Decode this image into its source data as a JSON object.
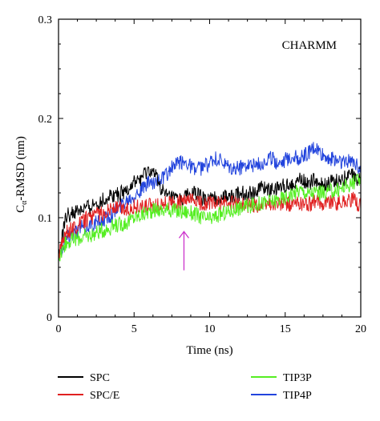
{
  "chart_data": {
    "type": "line",
    "title": "",
    "annotation_text": "CHARMM",
    "xlabel": "Time (ns)",
    "ylabel_parts": {
      "prefix": "C",
      "subscript": "α",
      "suffix": "-RMSD (nm)"
    },
    "xlim": [
      0,
      20
    ],
    "ylim": [
      0,
      0.3
    ],
    "xticks": [
      0,
      5,
      10,
      15,
      20
    ],
    "xtick_labels": [
      "0",
      "5",
      "10",
      "15",
      "20"
    ],
    "yticks": [
      0,
      0.1,
      0.2,
      0.3
    ],
    "ytick_labels": [
      "0",
      "0.1",
      "0.2",
      "0.3"
    ],
    "grid": false,
    "legend_position": "bottom",
    "arrow_annotation": {
      "x": 8.3,
      "y_from": 0.047,
      "y_to": 0.086,
      "color": "#cc33cc"
    },
    "series": [
      {
        "name": "SPC",
        "color": "#000000",
        "x": [
          0,
          0.5,
          1,
          1.5,
          2,
          2.5,
          3,
          3.5,
          4,
          4.5,
          5,
          5.5,
          6,
          6.5,
          7,
          7.5,
          8,
          8.5,
          9,
          9.5,
          10,
          10.5,
          11,
          11.5,
          12,
          12.5,
          13,
          13.5,
          14,
          14.5,
          15,
          15.5,
          16,
          16.5,
          17,
          17.5,
          18,
          18.5,
          19,
          19.5,
          20
        ],
        "y": [
          0.058,
          0.102,
          0.105,
          0.108,
          0.11,
          0.115,
          0.118,
          0.123,
          0.123,
          0.128,
          0.135,
          0.14,
          0.148,
          0.14,
          0.123,
          0.12,
          0.118,
          0.122,
          0.125,
          0.12,
          0.118,
          0.12,
          0.122,
          0.121,
          0.125,
          0.124,
          0.126,
          0.13,
          0.128,
          0.13,
          0.132,
          0.135,
          0.138,
          0.135,
          0.138,
          0.132,
          0.135,
          0.138,
          0.14,
          0.142,
          0.138
        ]
      },
      {
        "name": "SPC/E",
        "color": "#e02020",
        "x": [
          0,
          0.5,
          1,
          1.5,
          2,
          2.5,
          3,
          3.5,
          4,
          4.5,
          5,
          5.5,
          6,
          6.5,
          7,
          7.5,
          8,
          8.5,
          9,
          9.5,
          10,
          10.5,
          11,
          11.5,
          12,
          12.5,
          13,
          13.5,
          14,
          14.5,
          15,
          15.5,
          16,
          16.5,
          17,
          17.5,
          18,
          18.5,
          19,
          19.5,
          20
        ],
        "y": [
          0.062,
          0.085,
          0.09,
          0.095,
          0.1,
          0.102,
          0.105,
          0.11,
          0.11,
          0.108,
          0.112,
          0.11,
          0.112,
          0.112,
          0.115,
          0.114,
          0.115,
          0.116,
          0.117,
          0.114,
          0.115,
          0.114,
          0.115,
          0.114,
          0.114,
          0.112,
          0.113,
          0.112,
          0.115,
          0.113,
          0.114,
          0.113,
          0.115,
          0.113,
          0.116,
          0.115,
          0.117,
          0.115,
          0.117,
          0.118,
          0.112
        ]
      },
      {
        "name": "TIP3P",
        "color": "#55ee22",
        "x": [
          0,
          0.5,
          1,
          1.5,
          2,
          2.5,
          3,
          3.5,
          4,
          4.5,
          5,
          5.5,
          6,
          6.5,
          7,
          7.5,
          8,
          8.5,
          9,
          9.5,
          10,
          10.5,
          11,
          11.5,
          12,
          12.5,
          13,
          13.5,
          14,
          14.5,
          15,
          15.5,
          16,
          16.5,
          17,
          17.5,
          18,
          18.5,
          19,
          19.5,
          20
        ],
        "y": [
          0.06,
          0.075,
          0.078,
          0.08,
          0.082,
          0.085,
          0.088,
          0.09,
          0.093,
          0.095,
          0.1,
          0.103,
          0.106,
          0.108,
          0.107,
          0.108,
          0.106,
          0.106,
          0.104,
          0.1,
          0.098,
          0.102,
          0.105,
          0.107,
          0.11,
          0.112,
          0.113,
          0.115,
          0.116,
          0.118,
          0.12,
          0.125,
          0.128,
          0.124,
          0.126,
          0.125,
          0.127,
          0.128,
          0.132,
          0.135,
          0.138
        ]
      },
      {
        "name": "TIP4P",
        "color": "#2244dd",
        "x": [
          0,
          0.5,
          1,
          1.5,
          2,
          2.5,
          3,
          3.5,
          4,
          4.5,
          5,
          5.5,
          6,
          6.5,
          7,
          7.5,
          8,
          8.5,
          9,
          9.5,
          10,
          10.5,
          11,
          11.5,
          12,
          12.5,
          13,
          13.5,
          14,
          14.5,
          15,
          15.5,
          16,
          16.5,
          17,
          17.5,
          18,
          18.5,
          19,
          19.5,
          20
        ],
        "y": [
          0.06,
          0.08,
          0.085,
          0.09,
          0.092,
          0.095,
          0.098,
          0.103,
          0.11,
          0.118,
          0.123,
          0.128,
          0.135,
          0.138,
          0.14,
          0.15,
          0.155,
          0.156,
          0.148,
          0.15,
          0.155,
          0.16,
          0.152,
          0.148,
          0.15,
          0.155,
          0.152,
          0.155,
          0.16,
          0.156,
          0.158,
          0.162,
          0.16,
          0.165,
          0.17,
          0.162,
          0.16,
          0.158,
          0.155,
          0.158,
          0.15
        ]
      }
    ]
  }
}
